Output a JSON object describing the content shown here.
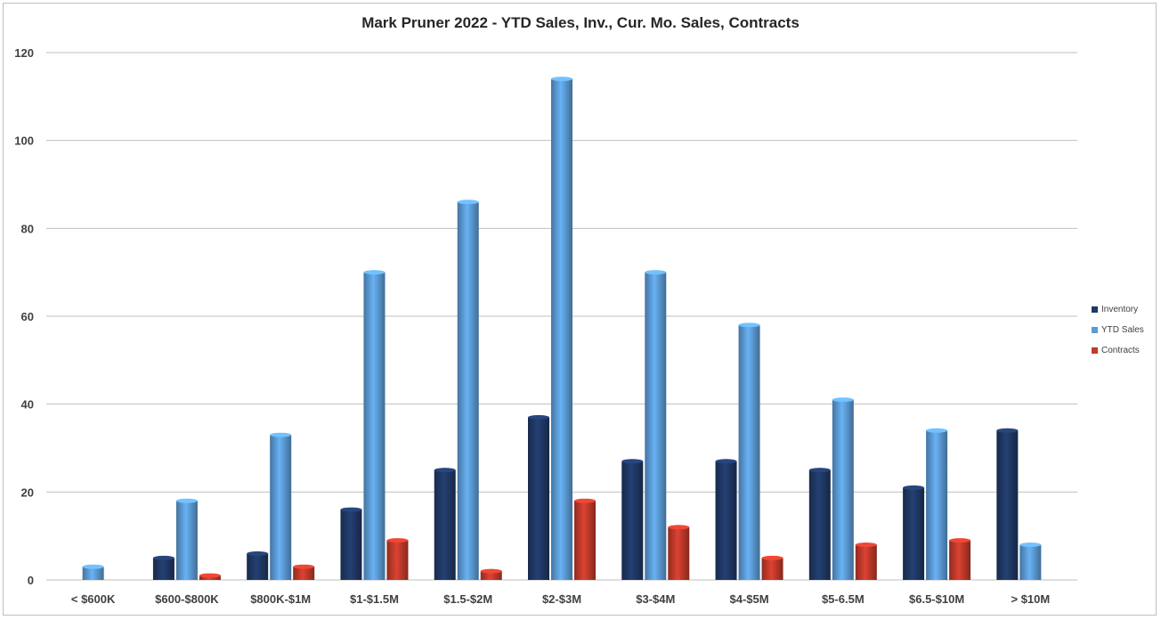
{
  "chart_data": {
    "type": "bar",
    "title": "Mark Pruner 2022 - YTD Sales, Inv., Cur. Mo. Sales, Contracts",
    "categories": [
      "< $600K",
      "$600-$800K",
      "$800K-$1M",
      "$1-$1.5M",
      "$1.5-$2M",
      "$2-$3M",
      "$3-$4M",
      "$4-$5M",
      "$5-6.5M",
      "$6.5-$10M",
      "> $10M"
    ],
    "series": [
      {
        "name": "Inventory",
        "color": "#1f3864",
        "values": [
          0,
          5,
          6,
          16,
          25,
          37,
          27,
          27,
          25,
          21,
          34
        ]
      },
      {
        "name": "YTD Sales",
        "color": "#5b9bd5",
        "values": [
          3,
          18,
          33,
          70,
          86,
          114,
          70,
          58,
          41,
          34,
          8
        ]
      },
      {
        "name": "Contracts",
        "color": "#c0392b",
        "values": [
          0,
          1,
          3,
          9,
          2,
          18,
          12,
          5,
          8,
          9,
          0
        ]
      }
    ],
    "yticks": [
      "0",
      "20",
      "40",
      "60",
      "80",
      "100",
      "120"
    ],
    "ylim": [
      0,
      120
    ],
    "grid": true,
    "legend_position": "right"
  }
}
